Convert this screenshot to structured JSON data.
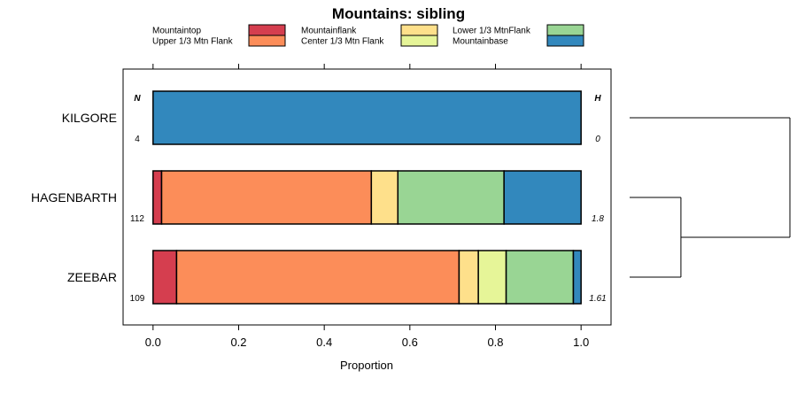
{
  "chart_data": {
    "type": "bar",
    "orientation": "horizontal",
    "stacked": true,
    "title": "Mountains: sibling",
    "xlabel": "Proportion",
    "xlim": [
      -0.07,
      1.07
    ],
    "xticks": [
      0,
      0.2,
      0.4,
      0.6,
      0.8,
      1
    ],
    "xtick_labels": [
      "0.0",
      "0.2",
      "0.4",
      "0.6",
      "0.8",
      "1.0"
    ],
    "categories": [
      "KILGORE",
      "HAGENBARTH",
      "ZEEBAR"
    ],
    "series": [
      {
        "name": "Mountaintop",
        "color": "#d53e4f",
        "values": [
          0,
          0.02,
          0.055
        ]
      },
      {
        "name": "Upper 1/3 Mtn Flank",
        "color": "#fc8d59",
        "values": [
          0,
          0.49,
          0.66
        ]
      },
      {
        "name": "Mountainflank",
        "color": "#fee08b",
        "values": [
          0,
          0.062,
          0.045
        ]
      },
      {
        "name": "Center 1/3 Mtn Flank",
        "color": "#e6f598",
        "values": [
          0,
          0,
          0.065
        ]
      },
      {
        "name": "Lower 1/3 MtnFlank",
        "color": "#99d594",
        "values": [
          0,
          0.248,
          0.157
        ]
      },
      {
        "name": "Mountainbase",
        "color": "#3288bd",
        "values": [
          1,
          0.18,
          0.018
        ]
      }
    ],
    "left_column_header": "N",
    "right_column_header": "H",
    "n_values": [
      "4",
      "112",
      "109"
    ],
    "h_values": [
      "0",
      "1.8",
      "1.61"
    ],
    "legend_position": "top",
    "dendrogram": {
      "description": "KILGORE joins cluster of HAGENBARTH and ZEEBAR",
      "merge_heights": [
        0.32,
        1.0
      ]
    }
  }
}
